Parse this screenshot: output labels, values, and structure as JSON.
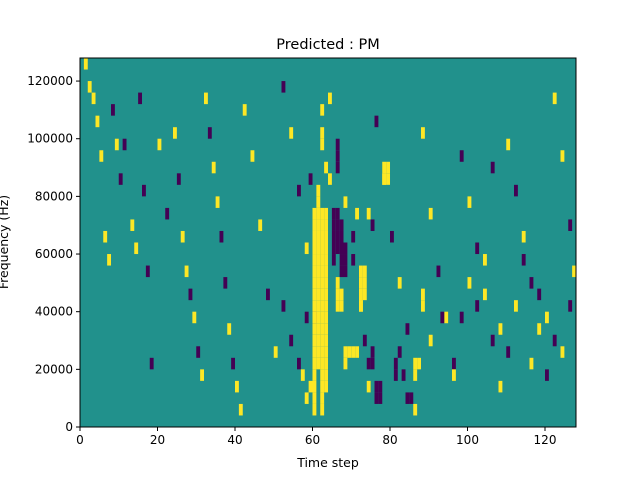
{
  "chart_data": {
    "type": "heatmap",
    "title": "Predicted : PM",
    "xlabel": "Time step",
    "ylabel": "Frequency (Hz)",
    "xlim": [
      0,
      128
    ],
    "ylim": [
      0,
      128000
    ],
    "x_ticks": [
      0,
      20,
      40,
      60,
      80,
      100,
      120
    ],
    "y_ticks": [
      0,
      20000,
      40000,
      60000,
      80000,
      100000,
      120000
    ],
    "y_tick_labels": [
      "0",
      "20000",
      "40000",
      "60000",
      "80000",
      "100000",
      "120000"
    ],
    "colormap": "viridis",
    "grid": false,
    "levels": {
      "background": {
        "value": 0,
        "color": "#21918c"
      },
      "high": {
        "value": 1,
        "color": "#fde725"
      },
      "low": {
        "value": -1,
        "color": "#440154"
      }
    },
    "bin_height_hz": 4000,
    "cells": [
      [
        1,
        124000,
        1
      ],
      [
        2,
        116000,
        1
      ],
      [
        3,
        112000,
        1
      ],
      [
        4,
        104000,
        1
      ],
      [
        5,
        92000,
        1
      ],
      [
        6,
        64000,
        1
      ],
      [
        7,
        56000,
        1
      ],
      [
        8,
        108000,
        -1
      ],
      [
        9,
        96000,
        1
      ],
      [
        10,
        84000,
        -1
      ],
      [
        11,
        96000,
        -1
      ],
      [
        13,
        68000,
        1
      ],
      [
        14,
        60000,
        1
      ],
      [
        15,
        112000,
        -1
      ],
      [
        16,
        80000,
        -1
      ],
      [
        17,
        52000,
        -1
      ],
      [
        18,
        20000,
        -1
      ],
      [
        20,
        96000,
        1
      ],
      [
        22,
        72000,
        -1
      ],
      [
        24,
        100000,
        1
      ],
      [
        25,
        84000,
        -1
      ],
      [
        26,
        64000,
        1
      ],
      [
        27,
        52000,
        1
      ],
      [
        28,
        44000,
        -1
      ],
      [
        29,
        36000,
        1
      ],
      [
        30,
        24000,
        -1
      ],
      [
        31,
        16000,
        1
      ],
      [
        32,
        112000,
        1
      ],
      [
        33,
        100000,
        -1
      ],
      [
        34,
        88000,
        1
      ],
      [
        35,
        76000,
        1
      ],
      [
        36,
        64000,
        -1
      ],
      [
        37,
        48000,
        -1
      ],
      [
        38,
        32000,
        1
      ],
      [
        39,
        20000,
        -1
      ],
      [
        40,
        12000,
        1
      ],
      [
        41,
        4000,
        1
      ],
      [
        42,
        108000,
        1
      ],
      [
        44,
        92000,
        1
      ],
      [
        46,
        68000,
        1
      ],
      [
        48,
        44000,
        -1
      ],
      [
        50,
        24000,
        1
      ],
      [
        52,
        116000,
        -1
      ],
      [
        54,
        100000,
        1
      ],
      [
        56,
        80000,
        -1
      ],
      [
        58,
        60000,
        1
      ],
      [
        60,
        36000,
        -1
      ],
      [
        61,
        20000,
        1
      ],
      [
        62,
        4000,
        1
      ],
      [
        64,
        112000,
        1
      ],
      [
        66,
        96000,
        -1
      ],
      [
        68,
        76000,
        1
      ],
      [
        70,
        56000,
        -1
      ],
      [
        72,
        40000,
        1
      ],
      [
        73,
        28000,
        -1
      ],
      [
        74,
        12000,
        1
      ],
      [
        76,
        104000,
        -1
      ],
      [
        78,
        84000,
        1
      ],
      [
        80,
        64000,
        -1
      ],
      [
        82,
        48000,
        1
      ],
      [
        84,
        32000,
        -1
      ],
      [
        86,
        16000,
        1
      ],
      [
        88,
        100000,
        1
      ],
      [
        90,
        72000,
        1
      ],
      [
        92,
        52000,
        -1
      ],
      [
        94,
        36000,
        1
      ],
      [
        96,
        20000,
        -1
      ],
      [
        98,
        92000,
        -1
      ],
      [
        100,
        76000,
        1
      ],
      [
        102,
        60000,
        -1
      ],
      [
        104,
        44000,
        1
      ],
      [
        106,
        28000,
        -1
      ],
      [
        108,
        12000,
        1
      ],
      [
        110,
        96000,
        1
      ],
      [
        112,
        80000,
        -1
      ],
      [
        114,
        64000,
        1
      ],
      [
        116,
        48000,
        -1
      ],
      [
        118,
        32000,
        1
      ],
      [
        120,
        16000,
        -1
      ],
      [
        122,
        112000,
        1
      ],
      [
        124,
        92000,
        1
      ],
      [
        126,
        68000,
        -1
      ],
      [
        127,
        52000,
        1
      ],
      [
        60,
        4000,
        1
      ],
      [
        60,
        8000,
        1
      ],
      [
        60,
        12000,
        1
      ],
      [
        60,
        16000,
        1
      ],
      [
        60,
        20000,
        1
      ],
      [
        60,
        24000,
        1
      ],
      [
        60,
        28000,
        1
      ],
      [
        60,
        32000,
        1
      ],
      [
        60,
        36000,
        1
      ],
      [
        60,
        40000,
        1
      ],
      [
        60,
        44000,
        1
      ],
      [
        60,
        48000,
        1
      ],
      [
        60,
        52000,
        1
      ],
      [
        60,
        56000,
        1
      ],
      [
        60,
        60000,
        1
      ],
      [
        60,
        64000,
        1
      ],
      [
        60,
        68000,
        1
      ],
      [
        60,
        72000,
        1
      ],
      [
        61,
        24000,
        1
      ],
      [
        61,
        28000,
        1
      ],
      [
        61,
        32000,
        1
      ],
      [
        61,
        36000,
        1
      ],
      [
        61,
        40000,
        1
      ],
      [
        61,
        44000,
        1
      ],
      [
        61,
        48000,
        1
      ],
      [
        61,
        52000,
        1
      ],
      [
        61,
        56000,
        1
      ],
      [
        61,
        60000,
        1
      ],
      [
        61,
        64000,
        1
      ],
      [
        61,
        68000,
        1
      ],
      [
        61,
        72000,
        1
      ],
      [
        61,
        76000,
        1
      ],
      [
        61,
        80000,
        1
      ],
      [
        62,
        8000,
        1
      ],
      [
        62,
        12000,
        1
      ],
      [
        62,
        16000,
        1
      ],
      [
        62,
        20000,
        1
      ],
      [
        62,
        24000,
        1
      ],
      [
        62,
        28000,
        1
      ],
      [
        62,
        32000,
        1
      ],
      [
        62,
        36000,
        1
      ],
      [
        62,
        40000,
        1
      ],
      [
        62,
        44000,
        1
      ],
      [
        62,
        48000,
        1
      ],
      [
        62,
        52000,
        1
      ],
      [
        62,
        56000,
        1
      ],
      [
        62,
        60000,
        1
      ],
      [
        62,
        64000,
        1
      ],
      [
        62,
        68000,
        1
      ],
      [
        62,
        72000,
        1
      ],
      [
        62,
        96000,
        1
      ],
      [
        62,
        100000,
        1
      ],
      [
        63,
        12000,
        1
      ],
      [
        63,
        16000,
        1
      ],
      [
        63,
        20000,
        1
      ],
      [
        63,
        24000,
        1
      ],
      [
        63,
        28000,
        1
      ],
      [
        63,
        32000,
        1
      ],
      [
        63,
        36000,
        1
      ],
      [
        63,
        40000,
        1
      ],
      [
        63,
        44000,
        1
      ],
      [
        63,
        48000,
        1
      ],
      [
        63,
        52000,
        1
      ],
      [
        63,
        56000,
        1
      ],
      [
        63,
        60000,
        1
      ],
      [
        63,
        64000,
        1
      ],
      [
        63,
        68000,
        1
      ],
      [
        63,
        72000,
        1
      ],
      [
        63,
        88000,
        1
      ],
      [
        65,
        56000,
        -1
      ],
      [
        65,
        60000,
        -1
      ],
      [
        65,
        64000,
        -1
      ],
      [
        65,
        68000,
        -1
      ],
      [
        65,
        72000,
        -1
      ],
      [
        66,
        60000,
        -1
      ],
      [
        66,
        64000,
        -1
      ],
      [
        66,
        68000,
        -1
      ],
      [
        66,
        72000,
        -1
      ],
      [
        66,
        88000,
        -1
      ],
      [
        66,
        92000,
        -1
      ],
      [
        67,
        52000,
        -1
      ],
      [
        67,
        56000,
        -1
      ],
      [
        67,
        60000,
        -1
      ],
      [
        67,
        64000,
        -1
      ],
      [
        67,
        68000,
        -1
      ],
      [
        68,
        52000,
        -1
      ],
      [
        68,
        56000,
        -1
      ],
      [
        68,
        60000,
        -1
      ],
      [
        66,
        40000,
        1
      ],
      [
        66,
        44000,
        1
      ],
      [
        66,
        48000,
        1
      ],
      [
        67,
        40000,
        1
      ],
      [
        67,
        44000,
        1
      ],
      [
        68,
        20000,
        1
      ],
      [
        68,
        24000,
        1
      ],
      [
        69,
        24000,
        1
      ],
      [
        70,
        24000,
        1
      ],
      [
        71,
        24000,
        1
      ],
      [
        72,
        40000,
        1
      ],
      [
        72,
        44000,
        1
      ],
      [
        72,
        48000,
        1
      ],
      [
        72,
        52000,
        1
      ],
      [
        73,
        44000,
        1
      ],
      [
        73,
        48000,
        1
      ],
      [
        73,
        52000,
        1
      ],
      [
        74,
        20000,
        -1
      ],
      [
        75,
        20000,
        -1
      ],
      [
        75,
        24000,
        -1
      ],
      [
        76,
        8000,
        -1
      ],
      [
        76,
        12000,
        -1
      ],
      [
        77,
        8000,
        -1
      ],
      [
        77,
        12000,
        -1
      ],
      [
        78,
        84000,
        1
      ],
      [
        78,
        88000,
        1
      ],
      [
        79,
        84000,
        1
      ],
      [
        79,
        88000,
        1
      ],
      [
        81,
        16000,
        -1
      ],
      [
        81,
        20000,
        -1
      ],
      [
        82,
        24000,
        -1
      ],
      [
        83,
        16000,
        -1
      ],
      [
        84,
        8000,
        -1
      ],
      [
        85,
        8000,
        -1
      ],
      [
        86,
        20000,
        1
      ],
      [
        87,
        20000,
        1
      ],
      [
        86,
        4000,
        1
      ],
      [
        88,
        40000,
        1
      ],
      [
        88,
        44000,
        1
      ],
      [
        90,
        28000,
        1
      ],
      [
        93,
        36000,
        -1
      ],
      [
        58,
        36000,
        -1
      ],
      [
        59,
        84000,
        -1
      ],
      [
        62,
        108000,
        1
      ],
      [
        64,
        84000,
        1
      ],
      [
        70,
        64000,
        -1
      ],
      [
        71,
        72000,
        1
      ],
      [
        74,
        72000,
        1
      ],
      [
        75,
        68000,
        -1
      ],
      [
        52,
        40000,
        -1
      ],
      [
        54,
        28000,
        -1
      ],
      [
        56,
        20000,
        -1
      ],
      [
        57,
        16000,
        1
      ],
      [
        58,
        8000,
        1
      ],
      [
        59,
        12000,
        1
      ],
      [
        96,
        16000,
        1
      ],
      [
        98,
        36000,
        -1
      ],
      [
        100,
        48000,
        1
      ],
      [
        102,
        40000,
        -1
      ],
      [
        104,
        56000,
        1
      ],
      [
        106,
        88000,
        -1
      ],
      [
        108,
        32000,
        1
      ],
      [
        110,
        24000,
        -1
      ],
      [
        112,
        40000,
        1
      ],
      [
        114,
        56000,
        -1
      ],
      [
        116,
        20000,
        1
      ],
      [
        118,
        44000,
        -1
      ],
      [
        120,
        36000,
        1
      ],
      [
        122,
        28000,
        -1
      ],
      [
        124,
        24000,
        1
      ],
      [
        126,
        40000,
        -1
      ]
    ]
  }
}
